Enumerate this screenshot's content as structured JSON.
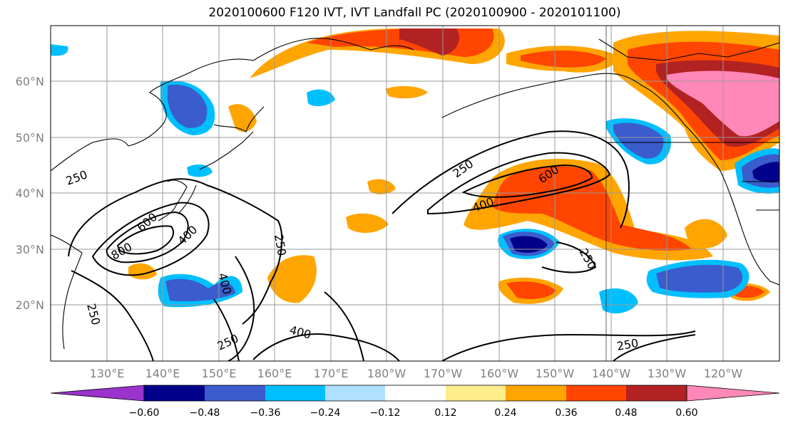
{
  "title": "2020100600 F120 IVT, IVT Landfall PC (2020100900 - 2020101100)",
  "lat_labels": [
    "60°N",
    "50°N",
    "40°N",
    "30°N",
    "20°N"
  ],
  "lon_labels": [
    "130°E",
    "140°E",
    "150°E",
    "160°E",
    "170°E",
    "180°W",
    "170°W",
    "160°W",
    "150°W",
    "140°W",
    "130°W",
    "120°W"
  ],
  "contour_labels": [
    "250",
    "250",
    "250",
    "250",
    "250",
    "250",
    "250",
    "400",
    "400",
    "400",
    "400",
    "600",
    "600",
    "800"
  ],
  "colorbar": {
    "ticks": [
      "−0.60",
      "−0.48",
      "−0.36",
      "−0.24",
      "−0.12",
      "0.12",
      "0.24",
      "0.36",
      "0.48",
      "0.60"
    ],
    "colors": [
      "#9a33cc",
      "#00008a",
      "#3a5ccc",
      "#00bfff",
      "#b0e0ff",
      "#ffffff",
      "#ffec8b",
      "#ffa500",
      "#ff4500",
      "#b22222",
      "#ff88b8"
    ]
  }
}
